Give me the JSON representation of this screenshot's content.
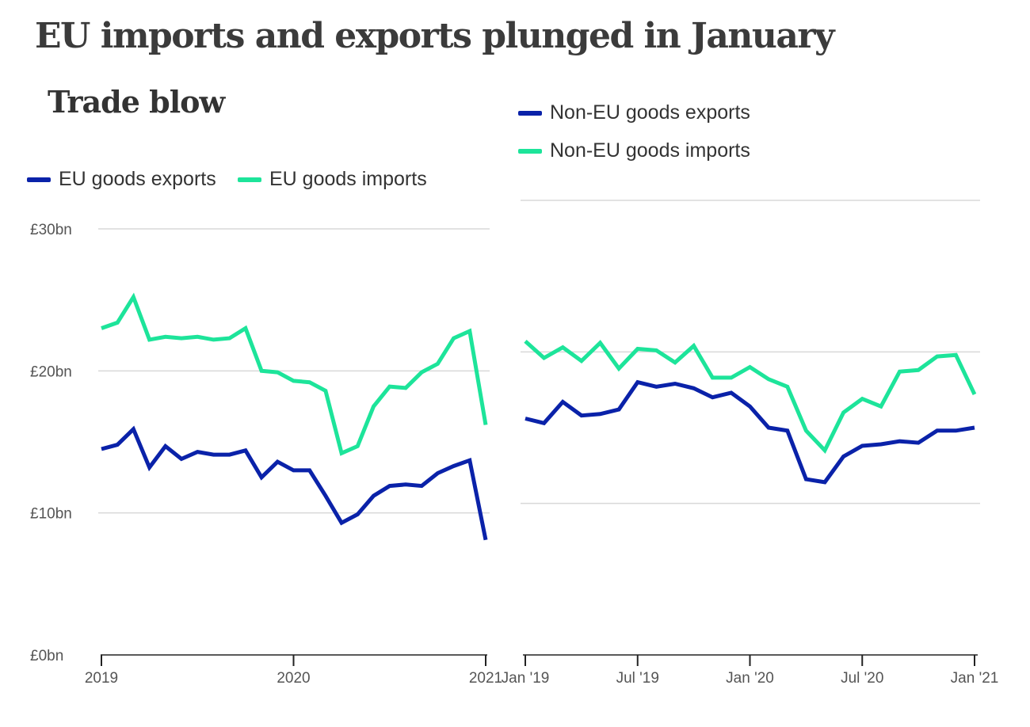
{
  "title": "EU imports and exports plunged in January",
  "subtitle": "Trade blow",
  "colors": {
    "exports": "#0a22a9",
    "imports": "#1de49a",
    "grid": "#d8d8d8",
    "axis": "#222222"
  },
  "chart_data": [
    {
      "type": "line",
      "title": "",
      "xlabel": "",
      "ylabel": "",
      "x": [
        "2019-01",
        "2019-02",
        "2019-03",
        "2019-04",
        "2019-05",
        "2019-06",
        "2019-07",
        "2019-08",
        "2019-09",
        "2019-10",
        "2019-11",
        "2019-12",
        "2020-01",
        "2020-02",
        "2020-03",
        "2020-04",
        "2020-05",
        "2020-06",
        "2020-07",
        "2020-08",
        "2020-09",
        "2020-10",
        "2020-11",
        "2020-12",
        "2021-01"
      ],
      "x_tick_labels": [
        "2019",
        "2020",
        "2021"
      ],
      "y_tick_labels": [
        "£0bn",
        "£10bn",
        "£20bn",
        "£30bn"
      ],
      "y_ticks": [
        0,
        10,
        20,
        30
      ],
      "ylim": [
        0,
        30
      ],
      "grid": true,
      "legend": "top-left",
      "series": [
        {
          "name": "EU goods exports",
          "color_key": "exports",
          "values": [
            14.5,
            14.8,
            15.9,
            13.2,
            14.7,
            13.8,
            14.3,
            14.1,
            14.1,
            14.4,
            12.5,
            13.6,
            13.0,
            13.0,
            11.2,
            9.3,
            9.9,
            11.2,
            11.9,
            12.0,
            11.9,
            12.8,
            13.3,
            13.7,
            8.1
          ]
        },
        {
          "name": "EU goods imports",
          "color_key": "imports",
          "values": [
            23.0,
            23.4,
            25.2,
            22.2,
            22.4,
            22.3,
            22.4,
            22.2,
            22.3,
            23.0,
            20.0,
            19.9,
            19.3,
            19.2,
            18.6,
            14.2,
            14.7,
            17.5,
            18.9,
            18.8,
            19.9,
            20.5,
            22.3,
            22.8,
            16.2
          ]
        }
      ]
    },
    {
      "type": "line",
      "title": "",
      "xlabel": "",
      "ylabel": "",
      "x": [
        "2019-01",
        "2019-02",
        "2019-03",
        "2019-04",
        "2019-05",
        "2019-06",
        "2019-07",
        "2019-08",
        "2019-09",
        "2019-10",
        "2019-11",
        "2019-12",
        "2020-01",
        "2020-02",
        "2020-03",
        "2020-04",
        "2020-05",
        "2020-06",
        "2020-07",
        "2020-08",
        "2020-09",
        "2020-10",
        "2020-11",
        "2020-12",
        "2021-01"
      ],
      "x_tick_labels": [
        "Jan '19",
        "Jul '19",
        "Jan '20",
        "Jul '20",
        "Jan '21"
      ],
      "y_ticks": [
        0,
        10,
        20,
        30
      ],
      "ylim": [
        0,
        30
      ],
      "grid": true,
      "legend": "top-left",
      "series": [
        {
          "name": "Non-EU goods exports",
          "color_key": "exports",
          "values": [
            15.6,
            15.3,
            16.7,
            15.8,
            15.9,
            16.2,
            18.0,
            17.7,
            17.9,
            17.6,
            17.0,
            17.3,
            16.4,
            15.0,
            14.8,
            11.6,
            11.4,
            13.1,
            13.8,
            13.9,
            14.1,
            14.0,
            14.8,
            14.8,
            15.0
          ]
        },
        {
          "name": "Non-EU goods imports",
          "color_key": "imports",
          "values": [
            20.7,
            19.6,
            20.3,
            19.4,
            20.6,
            18.9,
            20.2,
            20.1,
            19.3,
            20.4,
            18.3,
            18.3,
            19.0,
            18.2,
            17.7,
            14.8,
            13.5,
            16.0,
            16.9,
            16.4,
            18.7,
            18.8,
            19.7,
            19.8,
            17.2
          ]
        }
      ]
    }
  ]
}
